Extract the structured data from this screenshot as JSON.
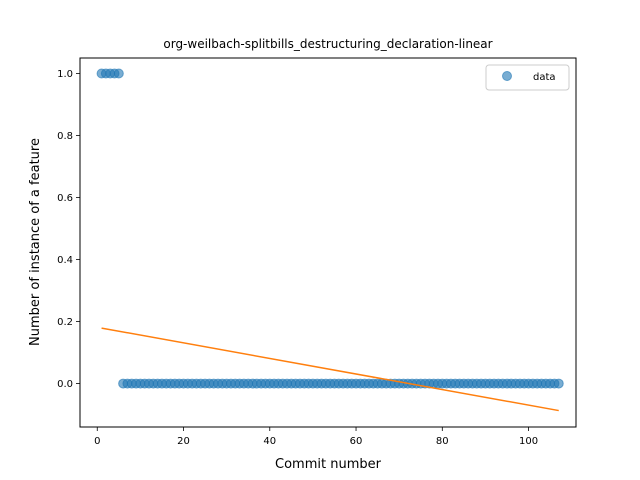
{
  "chart_data": {
    "type": "scatter",
    "title": "org-weilbach-splitbills_destructuring_declaration-linear",
    "xlabel": "Commit number",
    "ylabel": "Number of instance of a feature",
    "xlim": [
      -4,
      111
    ],
    "ylim": [
      -0.14,
      1.05
    ],
    "xticks": [
      0,
      20,
      40,
      60,
      80,
      100
    ],
    "yticks": [
      0.0,
      0.2,
      0.4,
      0.6,
      0.8,
      1.0
    ],
    "xtick_labels": [
      "0",
      "20",
      "40",
      "60",
      "80",
      "100"
    ],
    "ytick_labels": [
      "0.0",
      "0.2",
      "0.4",
      "0.6",
      "0.8",
      "1.0"
    ],
    "legend": {
      "placement": "top-right",
      "entries": [
        "data"
      ]
    },
    "grid": false,
    "colors": {
      "data": "#1f77b4",
      "fit": "#ff7f0e"
    },
    "series": [
      {
        "name": "data",
        "kind": "scatter",
        "x": [
          1,
          2,
          3,
          4,
          5,
          6,
          7,
          8,
          9,
          10,
          11,
          12,
          13,
          14,
          15,
          16,
          17,
          18,
          19,
          20,
          21,
          22,
          23,
          24,
          25,
          26,
          27,
          28,
          29,
          30,
          31,
          32,
          33,
          34,
          35,
          36,
          37,
          38,
          39,
          40,
          41,
          42,
          43,
          44,
          45,
          46,
          47,
          48,
          49,
          50,
          51,
          52,
          53,
          54,
          55,
          56,
          57,
          58,
          59,
          60,
          61,
          62,
          63,
          64,
          65,
          66,
          67,
          68,
          69,
          70,
          71,
          72,
          73,
          74,
          75,
          76,
          77,
          78,
          79,
          80,
          81,
          82,
          83,
          84,
          85,
          86,
          87,
          88,
          89,
          90,
          91,
          92,
          93,
          94,
          95,
          96,
          97,
          98,
          99,
          100,
          101,
          102,
          103,
          104,
          105,
          106,
          107
        ],
        "y": [
          1,
          1,
          1,
          1,
          1,
          0,
          0,
          0,
          0,
          0,
          0,
          0,
          0,
          0,
          0,
          0,
          0,
          0,
          0,
          0,
          0,
          0,
          0,
          0,
          0,
          0,
          0,
          0,
          0,
          0,
          0,
          0,
          0,
          0,
          0,
          0,
          0,
          0,
          0,
          0,
          0,
          0,
          0,
          0,
          0,
          0,
          0,
          0,
          0,
          0,
          0,
          0,
          0,
          0,
          0,
          0,
          0,
          0,
          0,
          0,
          0,
          0,
          0,
          0,
          0,
          0,
          0,
          0,
          0,
          0,
          0,
          0,
          0,
          0,
          0,
          0,
          0,
          0,
          0,
          0,
          0,
          0,
          0,
          0,
          0,
          0,
          0,
          0,
          0,
          0,
          0,
          0,
          0,
          0,
          0,
          0,
          0,
          0,
          0,
          0,
          0,
          0,
          0,
          0,
          0,
          0,
          0
        ]
      },
      {
        "kind": "line",
        "x": [
          1,
          107
        ],
        "y": [
          0.179,
          -0.087
        ]
      }
    ]
  }
}
